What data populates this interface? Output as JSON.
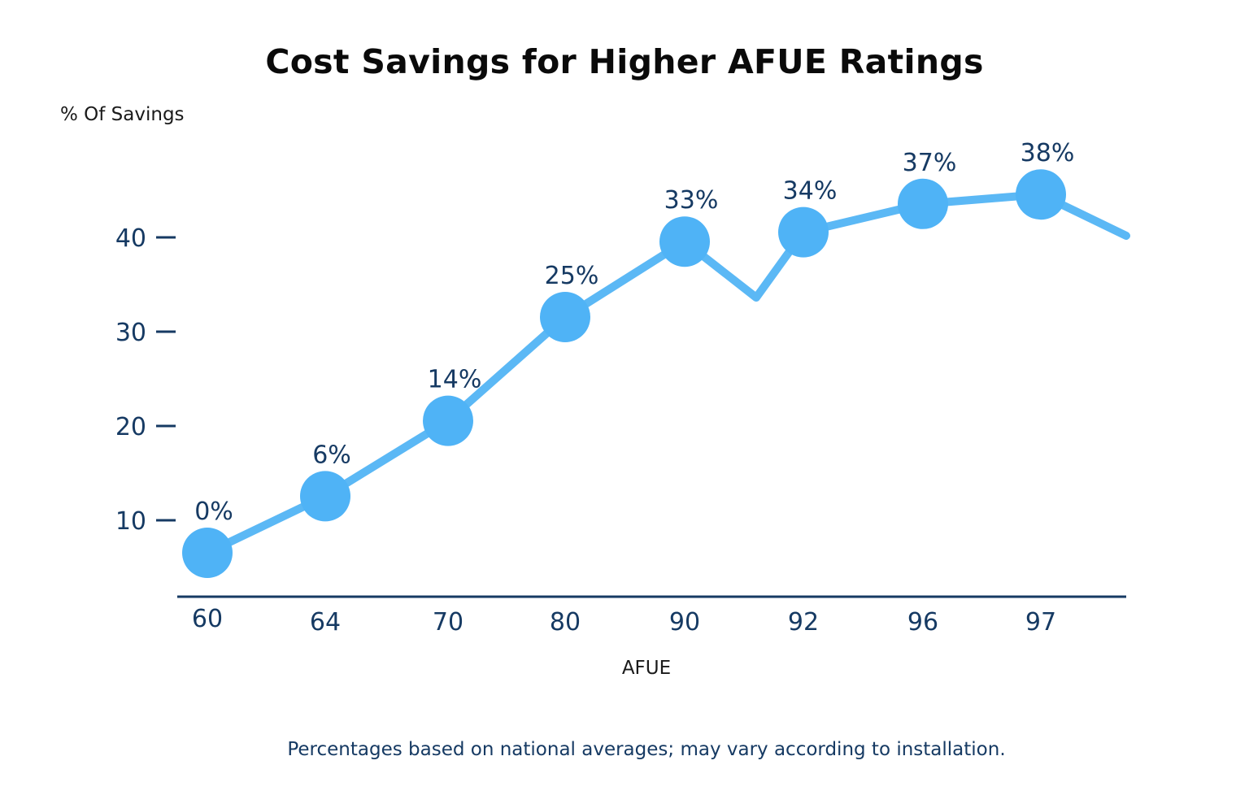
{
  "colors": {
    "line": "#5bb8f5",
    "marker": "#4fb3f6",
    "axis": "#163a63",
    "text": "#163a63"
  },
  "chart_data": {
    "type": "line",
    "title": "Cost Savings for Higher AFUE Ratings",
    "ylabel": "% Of Savings",
    "xlabel": "AFUE",
    "x": [
      "60",
      "64",
      "70",
      "80",
      "90",
      "92",
      "96",
      "97"
    ],
    "values": [
      0,
      6,
      14,
      25,
      33,
      34,
      37,
      38
    ],
    "data_labels": [
      "0%",
      "6%",
      "14%",
      "25%",
      "33%",
      "34%",
      "37%",
      "38%"
    ],
    "yticks": [
      "10",
      "20",
      "30",
      "40"
    ],
    "grid": false,
    "legend": "none"
  },
  "footnote": "Percentages based on national averages; may vary according to installation."
}
